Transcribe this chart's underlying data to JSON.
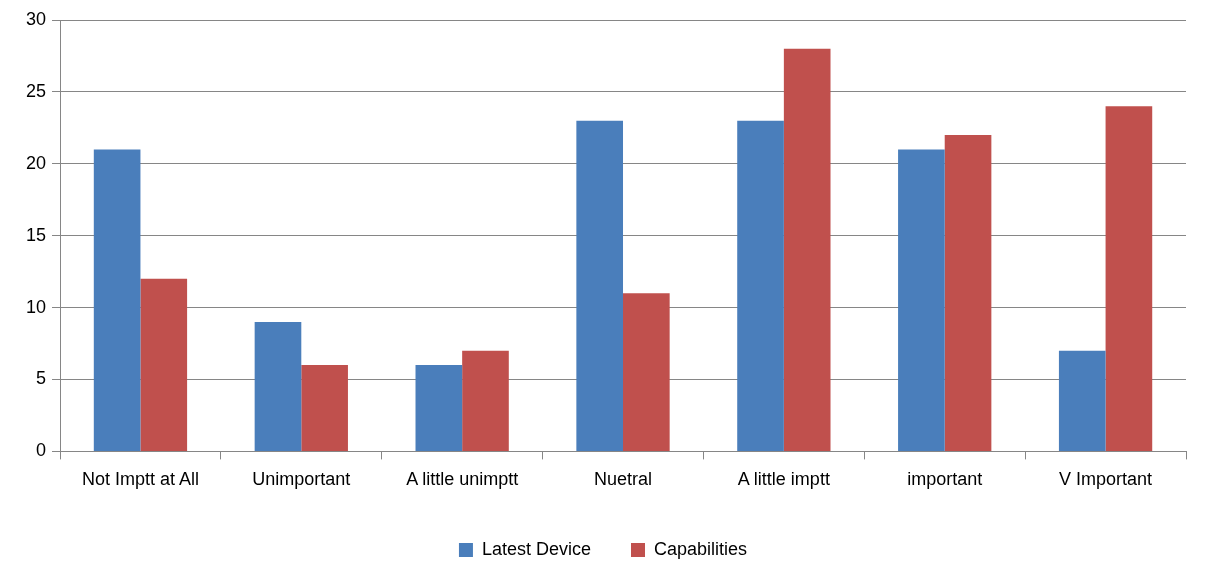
{
  "chart_data": {
    "type": "bar",
    "categories": [
      "Not Imptt at All",
      "Unimportant",
      "A little unimptt",
      "Nuetral",
      "A little imptt",
      "important",
      "V Important"
    ],
    "series": [
      {
        "name": "Latest Device",
        "color": "#4a7ebb",
        "values": [
          21,
          9,
          6,
          23,
          23,
          21,
          7
        ]
      },
      {
        "name": "Capabilities",
        "color": "#c0504d",
        "values": [
          12,
          6,
          7,
          11,
          28,
          22,
          24
        ]
      }
    ],
    "ylim": [
      0,
      30
    ],
    "yticks": [
      0,
      5,
      10,
      15,
      20,
      25,
      30
    ],
    "grid": "y",
    "legend": "bottom"
  }
}
